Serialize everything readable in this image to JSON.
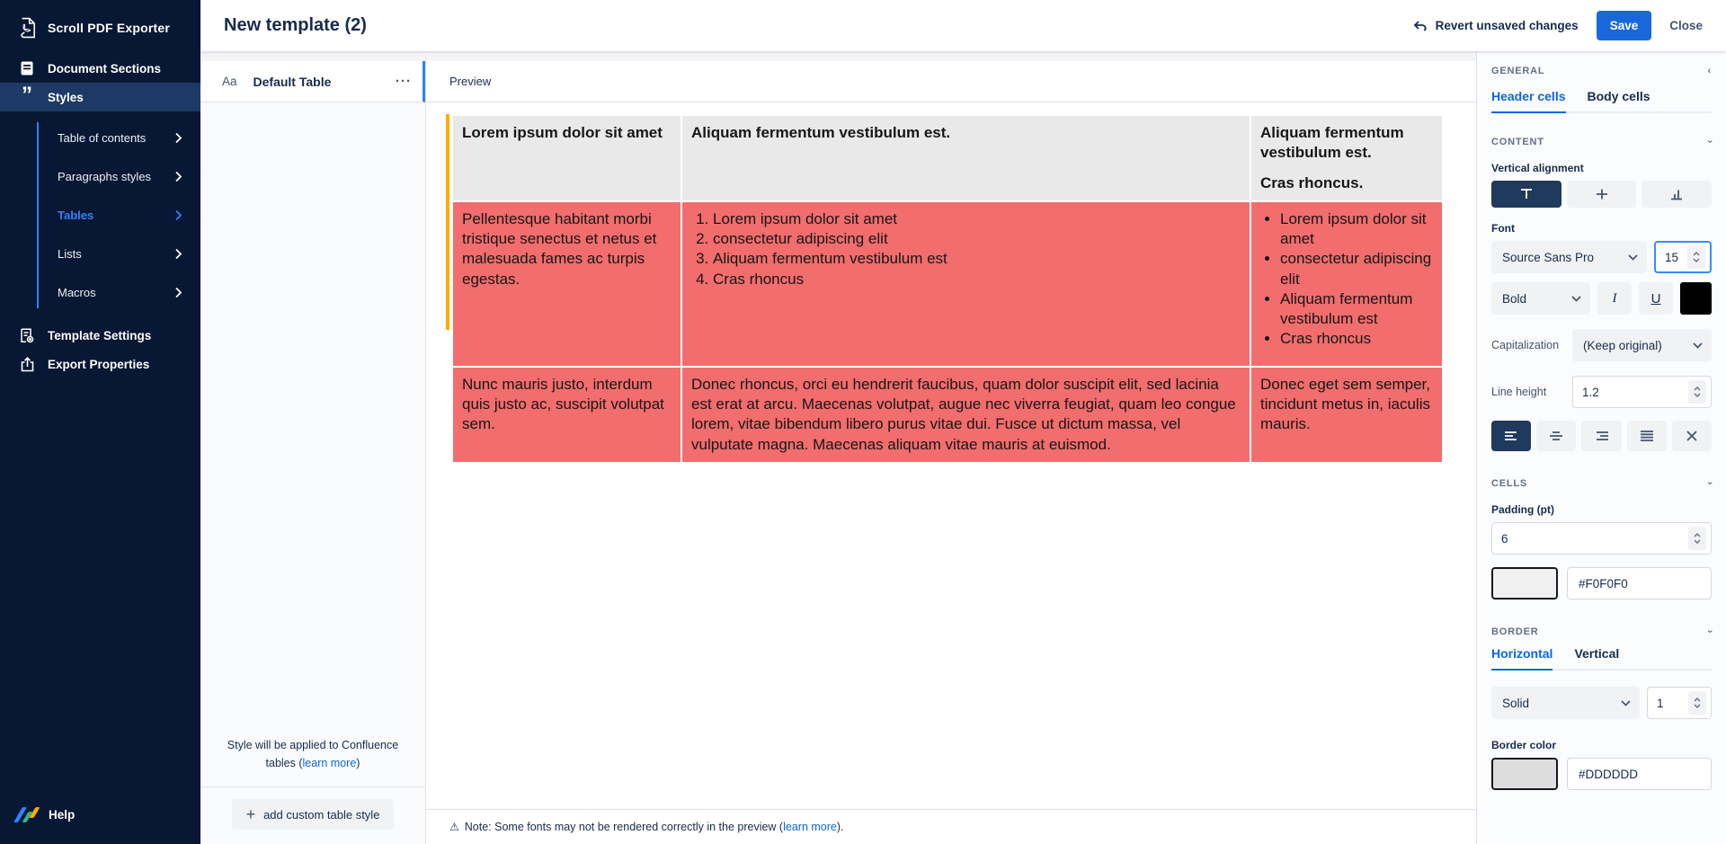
{
  "colors": {
    "sidebar_bg": "#081733",
    "sidebar_selected": "#1D3A66",
    "accent_blue": "#2E82FF",
    "link_blue": "#0C66E4",
    "save_blue": "#1868DB",
    "control_active": "#1F3A5C",
    "table_red": "#F26D6D",
    "table_header_gray": "#E9E9E9",
    "orange_marker": "#FFAB00",
    "font_swatch": "#000000",
    "cell_swatch": "#F0F0F0",
    "border_swatch": "#DDDDDD"
  },
  "sidebar": {
    "app_title": "Scroll PDF Exporter",
    "items": [
      {
        "label": "Document Sections",
        "icon": "document-icon"
      },
      {
        "label": "Styles",
        "icon": "quotes-icon"
      }
    ],
    "sub_items": [
      {
        "label": "Table of contents"
      },
      {
        "label": "Paragraphs styles"
      },
      {
        "label": "Tables"
      },
      {
        "label": "Lists"
      },
      {
        "label": "Macros"
      }
    ],
    "lower_items": [
      {
        "label": "Template Settings",
        "icon": "template-settings-icon"
      },
      {
        "label": "Export Properties",
        "icon": "export-icon"
      }
    ],
    "help_label": "Help",
    "quote_glyph": "”",
    "chevron_glyph": ""
  },
  "header": {
    "title": "New template (2)",
    "revert_label": "Revert unsaved changes",
    "save_label": "Save",
    "close_label": "Close"
  },
  "list_panel": {
    "item_icon_label": "Aa",
    "item_label": "Default Table",
    "menu_glyph": "···",
    "footer_text": "Style will be applied to Confluence tables (",
    "footer_link": "learn more",
    "footer_close": ")",
    "add_button_label": "add custom table style",
    "plus_glyph": "+"
  },
  "preview": {
    "strip_label": "Preview",
    "warn_glyph": "⚠",
    "note_text": "Note: Some fonts may not be rendered correctly in the preview (",
    "note_link": "learn more",
    "note_close": ").",
    "table": {
      "header": {
        "col1": "Lorem ipsum dolor sit amet",
        "col2": "Aliquam fermentum vestibulum est.",
        "col3_p1": "Aliquam fermentum vestibulum est.",
        "col3_p2": "Cras rhoncus."
      },
      "row1": {
        "col1": "Pellentesque habitant morbi tristique senectus et netus et malesuada fames ac turpis egestas.",
        "col2_items": [
          "Lorem ipsum dolor sit amet",
          "consectetur adipiscing elit",
          "Aliquam fermentum vestibulum est",
          "Cras rhoncus"
        ],
        "col3_items": [
          "Lorem ipsum dolor sit amet",
          "consectetur adipiscing elit",
          "Aliquam fermentum vestibulum est",
          "Cras rhoncus"
        ]
      },
      "row2": {
        "col1": "Nunc mauris justo, interdum quis justo ac, suscipit volutpat sem.",
        "col2": "Donec rhoncus, orci eu hendrerit faucibus, quam dolor suscipit elit, sed lacinia est erat at arcu. Maecenas volutpat, augue nec viverra feugiat, quam leo congue lorem, vitae bibendum libero purus vitae dui. Fusce ut dictum massa, vel vulputate magna. Maecenas aliquam vitae mauris at euismod.",
        "col3": "Donec eget sem semper, tincidunt metus in, iaculis mauris."
      }
    }
  },
  "panel": {
    "general_label": "GENERAL",
    "collapse_glyph": "‹",
    "expand_glyph": "›",
    "tabs": {
      "header_cells": "Header cells",
      "body_cells": "Body cells"
    },
    "content_label": "CONTENT",
    "vertical_alignment_label": "Vertical alignment",
    "font_label": "Font",
    "font_family_value": "Source Sans Pro",
    "font_size_value": "15",
    "font_weight_value": "Bold",
    "italic_label": "I",
    "underline_label": "U",
    "capitalization_label": "Capitalization",
    "capitalization_value": "(Keep original)",
    "line_height_label": "Line height",
    "line_height_value": "1.2",
    "cells_label": "CELLS",
    "padding_label": "Padding (pt)",
    "padding_value": "6",
    "cell_color_value": "#F0F0F0",
    "border_label": "BORDER",
    "border_tabs": {
      "horizontal": "Horizontal",
      "vertical": "Vertical"
    },
    "border_style_value": "Solid",
    "border_width_value": "1",
    "border_color_label": "Border color",
    "border_color_value": "#DDDDDD"
  }
}
